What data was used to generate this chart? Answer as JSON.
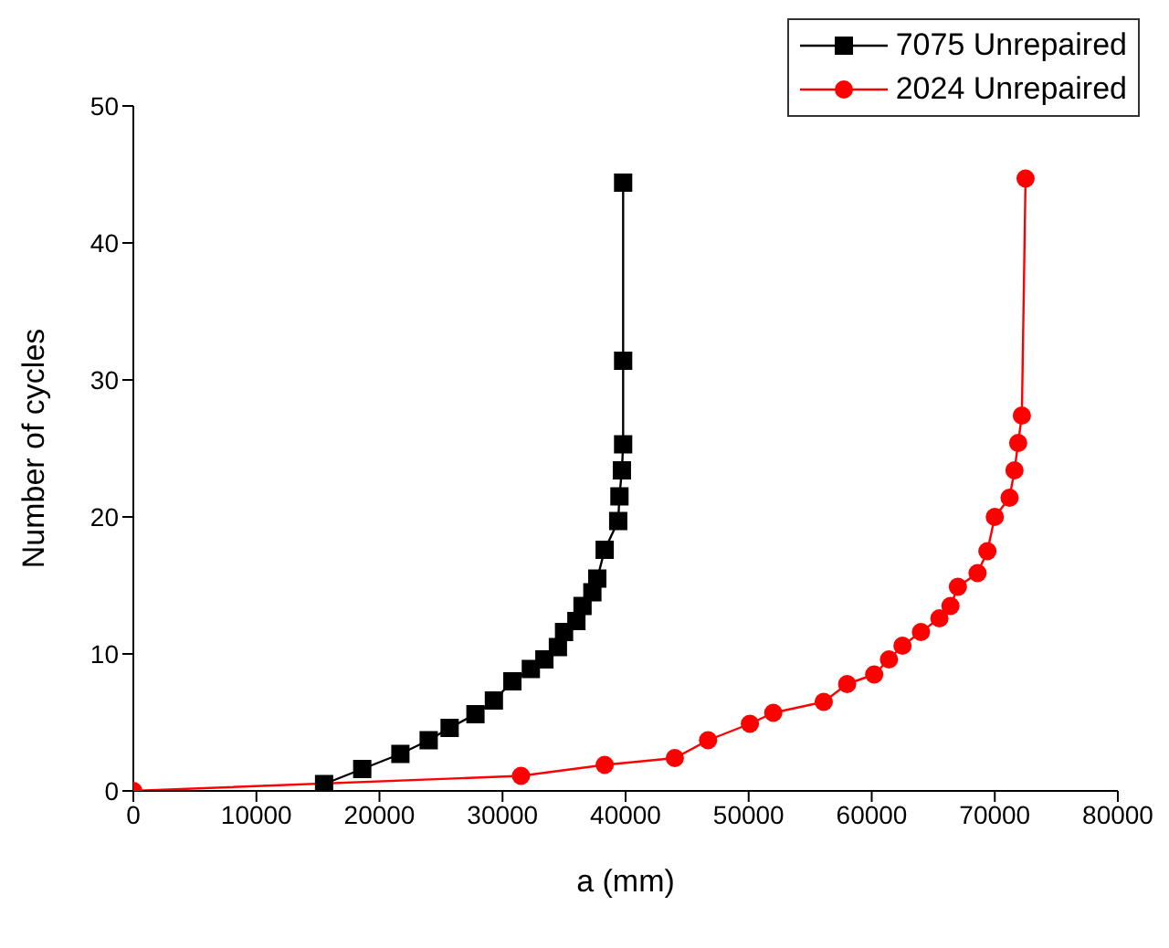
{
  "chart_data": {
    "type": "line",
    "xlabel": "a (mm)",
    "ylabel": "Number of cycles",
    "xlim": [
      0,
      80000
    ],
    "xticks": [
      0,
      10000,
      20000,
      30000,
      40000,
      50000,
      60000,
      70000,
      80000
    ],
    "ylim": [
      0,
      50
    ],
    "yticks": [
      0,
      10,
      20,
      30,
      40,
      50
    ],
    "grid": false,
    "legend": "top right",
    "line_style": "solid",
    "series": [
      {
        "name": "7075 Unrepaired",
        "color": "#000000",
        "marker": "square",
        "x": [
          15500,
          18600,
          21700,
          24000,
          25700,
          27800,
          29300,
          30800,
          32300,
          33400,
          34500,
          35000,
          36000,
          36500,
          37300,
          37700,
          38300,
          39400,
          39500,
          39700,
          39800,
          39800,
          39800
        ],
        "values": [
          0.5,
          1.6,
          2.7,
          3.7,
          4.6,
          5.6,
          6.6,
          8.0,
          8.9,
          9.6,
          10.5,
          11.6,
          12.4,
          13.5,
          14.5,
          15.5,
          17.6,
          19.7,
          21.5,
          23.4,
          25.3,
          31.4,
          44.4
        ]
      },
      {
        "name": "2024 Unrepaired",
        "color": "#ff0000",
        "marker": "circle",
        "x": [
          0,
          31500,
          38300,
          44000,
          46700,
          50100,
          52000,
          56100,
          58000,
          60200,
          61400,
          62500,
          64000,
          65500,
          66400,
          67000,
          68600,
          69400,
          70000,
          71200,
          71600,
          71900,
          72200,
          72500
        ],
        "values": [
          0,
          1.1,
          1.9,
          2.4,
          3.7,
          4.9,
          5.7,
          6.5,
          7.8,
          8.5,
          9.6,
          10.6,
          11.6,
          12.6,
          13.5,
          14.9,
          15.9,
          17.5,
          20.0,
          21.4,
          23.4,
          25.4,
          27.4,
          44.7
        ]
      }
    ]
  }
}
